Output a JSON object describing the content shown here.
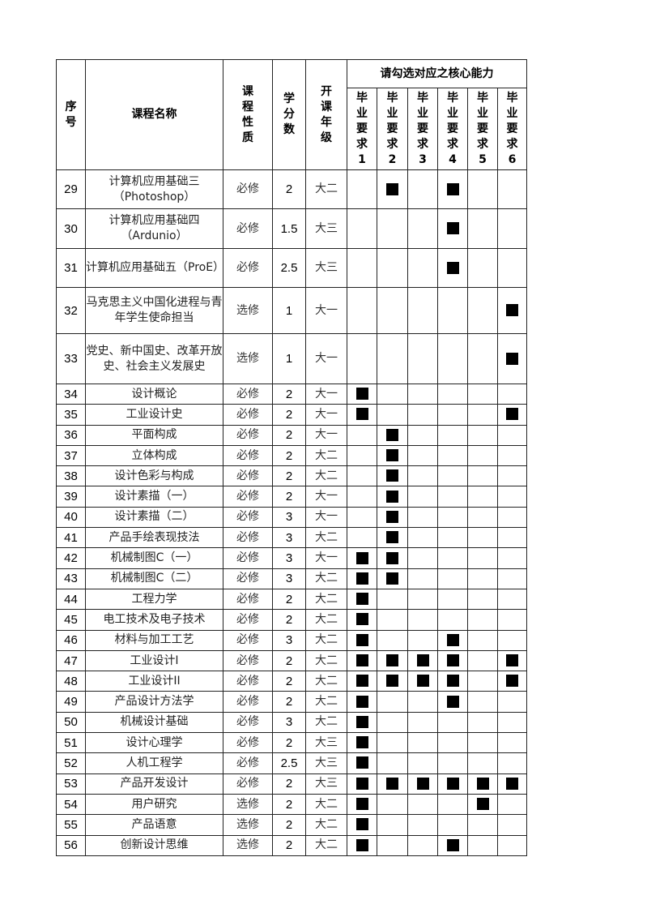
{
  "header": {
    "seq": "序号",
    "course_name": "课程名称",
    "course_type": "课程性质",
    "credits": "学分数",
    "grade": "开课年级",
    "abilities_group": "请勾选对应之核心能力",
    "abilities": [
      "毕业要求1",
      "毕业要求2",
      "毕业要求3",
      "毕业要求4",
      "毕业要求5",
      "毕业要求6"
    ]
  },
  "mark_color": "#000000",
  "rows": [
    {
      "no": "29",
      "name": "计算机应用基础三（Photoshop）",
      "type": "必修",
      "credits": "2",
      "grade": "大二",
      "marks": [
        0,
        1,
        0,
        1,
        0,
        0
      ]
    },
    {
      "no": "30",
      "name": "计算机应用基础四（Ardunio）",
      "type": "必修",
      "credits": "1.5",
      "grade": "大三",
      "marks": [
        0,
        0,
        0,
        1,
        0,
        0
      ]
    },
    {
      "no": "31",
      "name": "计算机应用基础五（ProE）",
      "type": "必修",
      "credits": "2.5",
      "grade": "大三",
      "marks": [
        0,
        0,
        0,
        1,
        0,
        0
      ]
    },
    {
      "no": "32",
      "name": "马克思主义中国化进程与青年学生使命担当",
      "type": "选修",
      "credits": "1",
      "grade": "大一",
      "marks": [
        0,
        0,
        0,
        0,
        0,
        1
      ]
    },
    {
      "no": "33",
      "name": "党史、新中国史、改革开放史、社会主义发展史",
      "type": "选修",
      "credits": "1",
      "grade": "大一",
      "marks": [
        0,
        0,
        0,
        0,
        0,
        1
      ]
    },
    {
      "no": "34",
      "name": "设计概论",
      "type": "必修",
      "credits": "2",
      "grade": "大一",
      "marks": [
        1,
        0,
        0,
        0,
        0,
        0
      ]
    },
    {
      "no": "35",
      "name": "工业设计史",
      "type": "必修",
      "credits": "2",
      "grade": "大一",
      "marks": [
        1,
        0,
        0,
        0,
        0,
        1
      ]
    },
    {
      "no": "36",
      "name": "平面构成",
      "type": "必修",
      "credits": "2",
      "grade": "大一",
      "marks": [
        0,
        1,
        0,
        0,
        0,
        0
      ]
    },
    {
      "no": "37",
      "name": "立体构成",
      "type": "必修",
      "credits": "2",
      "grade": "大二",
      "marks": [
        0,
        1,
        0,
        0,
        0,
        0
      ]
    },
    {
      "no": "38",
      "name": "设计色彩与构成",
      "type": "必修",
      "credits": "2",
      "grade": "大二",
      "marks": [
        0,
        1,
        0,
        0,
        0,
        0
      ]
    },
    {
      "no": "39",
      "name": "设计素描（一）",
      "type": "必修",
      "credits": "2",
      "grade": "大一",
      "marks": [
        0,
        1,
        0,
        0,
        0,
        0
      ]
    },
    {
      "no": "40",
      "name": "设计素描（二）",
      "type": "必修",
      "credits": "3",
      "grade": "大一",
      "marks": [
        0,
        1,
        0,
        0,
        0,
        0
      ]
    },
    {
      "no": "41",
      "name": "产品手绘表现技法",
      "type": "必修",
      "credits": "3",
      "grade": "大二",
      "marks": [
        0,
        1,
        0,
        0,
        0,
        0
      ]
    },
    {
      "no": "42",
      "name": "机械制图C（一）",
      "type": "必修",
      "credits": "3",
      "grade": "大一",
      "marks": [
        1,
        1,
        0,
        0,
        0,
        0
      ]
    },
    {
      "no": "43",
      "name": "机械制图C（二）",
      "type": "必修",
      "credits": "3",
      "grade": "大二",
      "marks": [
        1,
        1,
        0,
        0,
        0,
        0
      ]
    },
    {
      "no": "44",
      "name": "工程力学",
      "type": "必修",
      "credits": "2",
      "grade": "大二",
      "marks": [
        1,
        0,
        0,
        0,
        0,
        0
      ]
    },
    {
      "no": "45",
      "name": "电工技术及电子技术",
      "type": "必修",
      "credits": "2",
      "grade": "大二",
      "marks": [
        1,
        0,
        0,
        0,
        0,
        0
      ]
    },
    {
      "no": "46",
      "name": "材料与加工工艺",
      "type": "必修",
      "credits": "3",
      "grade": "大二",
      "marks": [
        1,
        0,
        0,
        1,
        0,
        0
      ]
    },
    {
      "no": "47",
      "name": "工业设计I",
      "type": "必修",
      "credits": "2",
      "grade": "大二",
      "marks": [
        1,
        1,
        1,
        1,
        0,
        1
      ]
    },
    {
      "no": "48",
      "name": "工业设计II",
      "type": "必修",
      "credits": "2",
      "grade": "大二",
      "marks": [
        1,
        1,
        1,
        1,
        0,
        1
      ]
    },
    {
      "no": "49",
      "name": "产品设计方法学",
      "type": "必修",
      "credits": "2",
      "grade": "大二",
      "marks": [
        1,
        0,
        0,
        1,
        0,
        0
      ]
    },
    {
      "no": "50",
      "name": "机械设计基础",
      "type": "必修",
      "credits": "3",
      "grade": "大二",
      "marks": [
        1,
        0,
        0,
        0,
        0,
        0
      ]
    },
    {
      "no": "51",
      "name": "设计心理学",
      "type": "必修",
      "credits": "2",
      "grade": "大三",
      "marks": [
        1,
        0,
        0,
        0,
        0,
        0
      ]
    },
    {
      "no": "52",
      "name": "人机工程学",
      "type": "必修",
      "credits": "2.5",
      "grade": "大三",
      "marks": [
        1,
        0,
        0,
        0,
        0,
        0
      ]
    },
    {
      "no": "53",
      "name": "产品开发设计",
      "type": "必修",
      "credits": "2",
      "grade": "大三",
      "marks": [
        1,
        1,
        1,
        1,
        1,
        1
      ]
    },
    {
      "no": "54",
      "name": "用户研究",
      "type": "选修",
      "credits": "2",
      "grade": "大二",
      "marks": [
        1,
        0,
        0,
        0,
        1,
        0
      ]
    },
    {
      "no": "55",
      "name": "产品语意",
      "type": "选修",
      "credits": "2",
      "grade": "大二",
      "marks": [
        1,
        0,
        0,
        0,
        0,
        0
      ]
    },
    {
      "no": "56",
      "name": "创新设计思维",
      "type": "选修",
      "credits": "2",
      "grade": "大二",
      "marks": [
        1,
        0,
        0,
        1,
        0,
        0
      ]
    }
  ]
}
